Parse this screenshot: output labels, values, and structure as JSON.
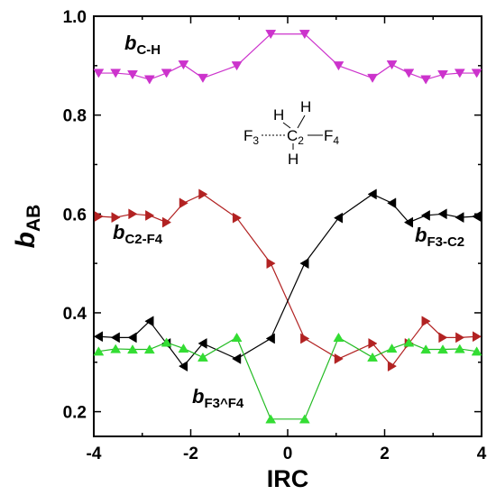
{
  "chart_data": {
    "type": "line",
    "xlabel": "IRC",
    "ylabel": {
      "main": "b",
      "sub": "AB"
    },
    "xlim": [
      -4,
      4
    ],
    "ylim": [
      0.15,
      1.0
    ],
    "xticks": [
      -4,
      -2,
      0,
      2,
      4
    ],
    "yticks": [
      0.2,
      0.4,
      0.6,
      0.8,
      1.0
    ],
    "xtick_labels": [
      "-4",
      "-2",
      "0",
      "2",
      "4"
    ],
    "ytick_labels": [
      "0.2",
      "0.4",
      "0.6",
      "0.8",
      "1.0"
    ],
    "grid": false,
    "x": [
      -3.9,
      -3.55,
      -3.2,
      -2.85,
      -2.5,
      -2.15,
      -1.75,
      -1.05,
      -0.35,
      0.35,
      1.05,
      1.75,
      2.15,
      2.5,
      2.85,
      3.2,
      3.55,
      3.9
    ],
    "series": [
      {
        "key": "ch",
        "color": "#cc33cc",
        "fill": "#cc33cc",
        "marker": "down",
        "values": [
          0.885,
          0.885,
          0.882,
          0.872,
          0.885,
          0.902,
          0.875,
          0.9,
          0.964,
          0.964,
          0.9,
          0.875,
          0.902,
          0.885,
          0.872,
          0.882,
          0.885,
          0.885
        ]
      },
      {
        "key": "c2f4",
        "color": "#b22222",
        "fill": "#b22222",
        "marker": "right",
        "values": [
          0.595,
          0.593,
          0.6,
          0.597,
          0.583,
          0.622,
          0.64,
          0.592,
          0.5,
          0.348,
          0.307,
          0.338,
          0.292,
          0.338,
          0.383,
          0.35,
          0.35,
          0.352
        ]
      },
      {
        "key": "f3c2",
        "color": "#000000",
        "fill": "#000000",
        "marker": "left",
        "values": [
          0.352,
          0.35,
          0.35,
          0.383,
          0.338,
          0.292,
          0.338,
          0.307,
          0.348,
          0.5,
          0.592,
          0.64,
          0.622,
          0.583,
          0.597,
          0.6,
          0.593,
          0.595
        ]
      },
      {
        "key": "f3f4",
        "color": "#22bb22",
        "fill": "#33dd33",
        "marker": "up",
        "values": [
          0.322,
          0.327,
          0.326,
          0.326,
          0.34,
          0.328,
          0.31,
          0.35,
          0.185,
          0.185,
          0.35,
          0.31,
          0.328,
          0.34,
          0.326,
          0.326,
          0.327,
          0.322
        ]
      }
    ],
    "annotations": {
      "ch": {
        "main": "b",
        "sub": "C-H"
      },
      "c2f4": {
        "main": "b",
        "sub": "C2-F4"
      },
      "f3c2": {
        "main": "b",
        "sub": "F3-C2"
      },
      "f3f4": {
        "main": "b",
        "sub": "F3^F4"
      }
    },
    "molecule": {
      "h_top_left": "H",
      "h_top_right": "H",
      "f3": "F",
      "f3_sub": "3",
      "c2": "C",
      "c2_sub": "2",
      "f4": "F",
      "f4_sub": "4",
      "h_bottom": "H"
    }
  }
}
